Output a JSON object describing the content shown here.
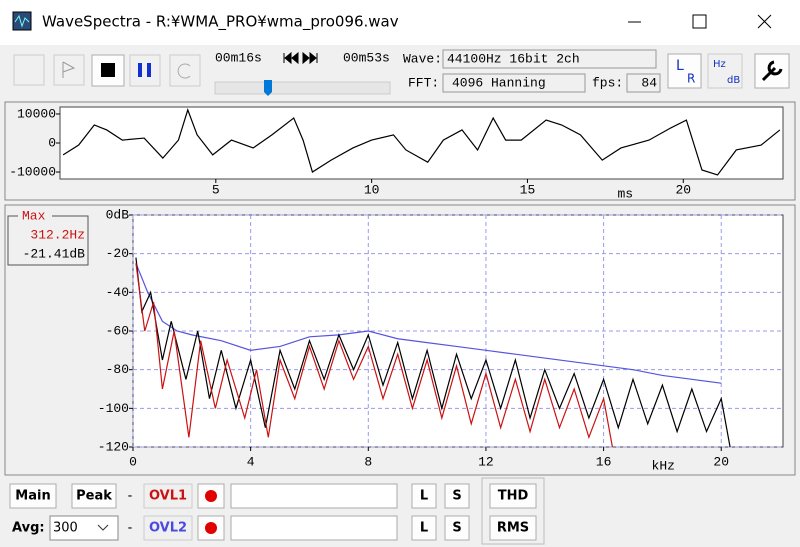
{
  "window": {
    "title": "WaveSpectra - R:¥WMA_PRO¥wma_pro096.wav"
  },
  "toolbar": {
    "time_start": "00m16s",
    "time_end": "00m53s",
    "wave_label": "Wave:",
    "wave_value": "44100Hz 16bit 2ch",
    "fft_label": "FFT:",
    "fft_value": "4096 Hanning",
    "fps_label": "fps:",
    "fps_value": "84",
    "lr_icon": [
      "L",
      "R"
    ],
    "hzdb_icon": [
      "Hz",
      "dB"
    ]
  },
  "chart_data": [
    {
      "type": "line",
      "x_label": "ms",
      "xlim": [
        0,
        23.2
      ],
      "xticks": [
        5,
        10,
        15,
        20
      ],
      "ylim": [
        -12400,
        12400
      ],
      "yticks": [
        10000,
        0,
        -10000
      ],
      "grid": false,
      "series": [
        {
          "color": "#000000",
          "x": [
            0.1,
            0.6,
            1.1,
            1.5,
            2.0,
            2.7,
            3.3,
            3.8,
            4.1,
            4.4,
            4.9,
            5.5,
            6.2,
            6.8,
            7.5,
            7.8,
            8.1,
            8.7,
            9.4,
            10.0,
            10.7,
            11.1,
            11.8,
            12.3,
            12.9,
            13.4,
            13.9,
            14.3,
            14.8,
            15.6,
            16.1,
            16.7,
            17.4,
            18.0,
            18.9,
            19.6,
            20.1,
            20.6,
            21.1,
            21.7,
            22.5,
            23.1
          ],
          "values": [
            -4100,
            -700,
            6200,
            4500,
            1000,
            1700,
            -5200,
            1000,
            11400,
            2800,
            -4100,
            1000,
            -1700,
            2800,
            8600,
            1000,
            -10000,
            -5900,
            -1700,
            1000,
            2800,
            -2400,
            -6600,
            1000,
            4500,
            -2400,
            8600,
            1000,
            1000,
            7900,
            6200,
            2800,
            -5900,
            -1700,
            1000,
            5200,
            7900,
            -9300,
            -11000,
            -2400,
            -700,
            4500
          ]
        }
      ]
    },
    {
      "type": "line",
      "x_label": "kHz",
      "xlim": [
        0,
        22.1
      ],
      "xticks": [
        0,
        4,
        8,
        12,
        16,
        20
      ],
      "ylim": [
        -120,
        0
      ],
      "yticks": [
        {
          "value": 0,
          "label": "0dB"
        },
        -20,
        -40,
        -60,
        -80,
        -100,
        -120
      ],
      "grid": true,
      "series": [
        {
          "color": "#5555dd",
          "x": [
            0.1,
            0.5,
            1,
            1.5,
            2,
            3,
            4,
            5,
            6,
            7,
            8,
            9,
            10,
            11,
            12,
            13,
            14,
            15,
            16,
            17,
            18,
            19,
            20
          ],
          "values": [
            -25,
            -40,
            -55,
            -60,
            -62,
            -65,
            -70,
            -68,
            -63,
            -62,
            -60,
            -64,
            -66,
            -68,
            -70,
            -72,
            -74,
            -76,
            -78,
            -80,
            -83,
            -85,
            -87
          ]
        },
        {
          "color": "#000000",
          "x": [
            0.1,
            0.3,
            0.6,
            1,
            1.3,
            1.8,
            2.2,
            2.6,
            3,
            3.5,
            4,
            4.5,
            5,
            5.5,
            6,
            6.5,
            7,
            7.5,
            8,
            8.5,
            9,
            9.5,
            10,
            10.5,
            11,
            11.5,
            12,
            12.5,
            13,
            13.5,
            14,
            14.5,
            15,
            15.5,
            16,
            16.5,
            17,
            17.5,
            18,
            18.5,
            19,
            19.5,
            20,
            20.3
          ],
          "values": [
            -22,
            -50,
            -40,
            -75,
            -55,
            -85,
            -60,
            -95,
            -70,
            -100,
            -75,
            -110,
            -70,
            -90,
            -65,
            -85,
            -62,
            -80,
            -62,
            -88,
            -66,
            -95,
            -70,
            -100,
            -72,
            -95,
            -75,
            -100,
            -75,
            -105,
            -80,
            -100,
            -82,
            -105,
            -85,
            -110,
            -85,
            -108,
            -88,
            -112,
            -90,
            -112,
            -95,
            -120
          ]
        },
        {
          "color": "#cc1111",
          "x": [
            0.1,
            0.4,
            0.7,
            1,
            1.4,
            1.9,
            2.3,
            2.8,
            3.2,
            3.8,
            4.2,
            4.6,
            5,
            5.5,
            6,
            6.5,
            7,
            7.5,
            8,
            8.5,
            9,
            9.5,
            10,
            10.5,
            11,
            11.5,
            12,
            12.5,
            13,
            13.5,
            14,
            14.5,
            15,
            15.5,
            16,
            16.3
          ],
          "values": [
            -25,
            -60,
            -45,
            -90,
            -60,
            -115,
            -65,
            -100,
            -75,
            -105,
            -80,
            -115,
            -75,
            -95,
            -68,
            -90,
            -65,
            -85,
            -68,
            -95,
            -72,
            -100,
            -75,
            -105,
            -78,
            -108,
            -82,
            -110,
            -85,
            -112,
            -85,
            -110,
            -90,
            -115,
            -95,
            -120
          ]
        }
      ]
    }
  ],
  "max_box": {
    "label": "Max",
    "freq": "312.2Hz",
    "level": "-21.41dB"
  },
  "controls": {
    "main": "Main",
    "peak": "Peak",
    "dash1": "-",
    "ovl1": "OVL1",
    "avg_label": "Avg:",
    "avg_value": "300",
    "dash2": "-",
    "ovl2": "OVL2",
    "l1": "L",
    "s1": "S",
    "l2": "L",
    "s2": "S",
    "thd": "THD",
    "rms": "RMS"
  }
}
